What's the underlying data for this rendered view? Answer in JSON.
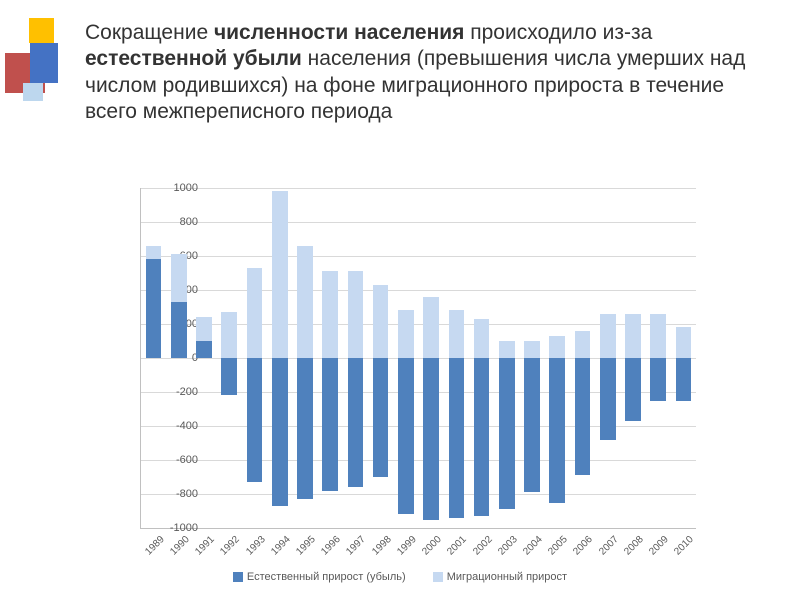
{
  "title_parts": {
    "t1": "Сокращение ",
    "t2": "численности населения",
    "t3": " происходило из-за ",
    "t4": "естественной убыли",
    "t5": " населения (превышения числа умерших над числом родившихся) на фоне миграционного прироста в течение всего межпереписного периода"
  },
  "chart": {
    "type": "bar",
    "background_color": "#ffffff",
    "grid_color": "#d9d9d9",
    "axis_color": "#c0c0c0",
    "label_color": "#595959",
    "label_fontsize": 11,
    "xlabel_fontsize": 10,
    "ylim_min": -1000,
    "ylim_max": 1000,
    "ytick_step": 200,
    "bar_fill_ratio": 0.62,
    "categories": [
      "1989",
      "1990",
      "1991",
      "1992",
      "1993",
      "1994",
      "1995",
      "1996",
      "1997",
      "1998",
      "1999",
      "2000",
      "2001",
      "2002",
      "2003",
      "2004",
      "2005",
      "2006",
      "2007",
      "2008",
      "2009",
      "2010"
    ],
    "series": {
      "natural": {
        "label": "Естественный прирост (убыль)",
        "color": "#4f81bd",
        "values": [
          580,
          330,
          100,
          -220,
          -730,
          -870,
          -830,
          -780,
          -760,
          -700,
          -920,
          -950,
          -940,
          -930,
          -890,
          -790,
          -850,
          -690,
          -480,
          -370,
          -250,
          -250
        ]
      },
      "migration": {
        "label": "Миграционный прирост",
        "color": "#c6d9f1",
        "values": [
          80,
          280,
          140,
          270,
          530,
          980,
          660,
          510,
          510,
          430,
          280,
          360,
          280,
          230,
          100,
          100,
          130,
          160,
          260,
          260,
          260,
          180
        ]
      }
    }
  }
}
